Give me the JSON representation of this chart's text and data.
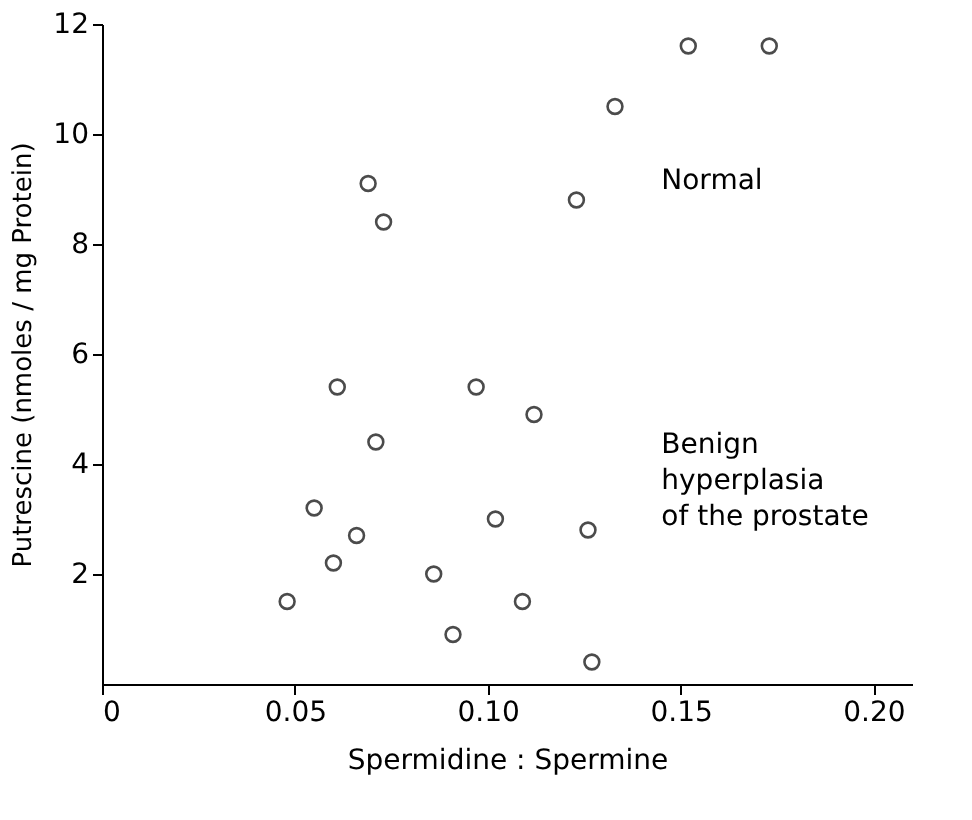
{
  "chart_data": {
    "type": "scatter",
    "xlabel": "Spermidine : Spermine",
    "ylabel": "Putrescine (nmoles / mg Protein)",
    "xlim": [
      0,
      0.21
    ],
    "ylim": [
      0,
      12
    ],
    "xticks": [
      0,
      {
        "value": 0.05,
        "label": "0.05"
      },
      {
        "value": 0.1,
        "label": "0.10"
      },
      {
        "value": 0.15,
        "label": "0.15"
      },
      {
        "value": 0.2,
        "label": "0.20"
      }
    ],
    "yticks": [
      2,
      4,
      6,
      8,
      10,
      12
    ],
    "grid": false,
    "marker": "circle",
    "series": [
      {
        "color": "#000000",
        "x": [
          0.061,
          0.097,
          0.112,
          0.071,
          0.055,
          0.066,
          0.102,
          0.126,
          0.06,
          0.086,
          0.048,
          0.109,
          0.091,
          0.127,
          0.069,
          0.073,
          0.123,
          0.133,
          0.152,
          0.173
        ],
        "values": [
          5.4,
          5.4,
          4.9,
          4.4,
          3.2,
          2.7,
          3.0,
          2.8,
          2.2,
          2.0,
          1.5,
          1.5,
          0.9,
          0.4,
          9.1,
          8.4,
          8.8,
          10.5,
          11.6,
          11.6
        ]
      }
    ],
    "annotations": [
      "Normal",
      "Benign\nhyperplasia\nof the prostate"
    ]
  }
}
